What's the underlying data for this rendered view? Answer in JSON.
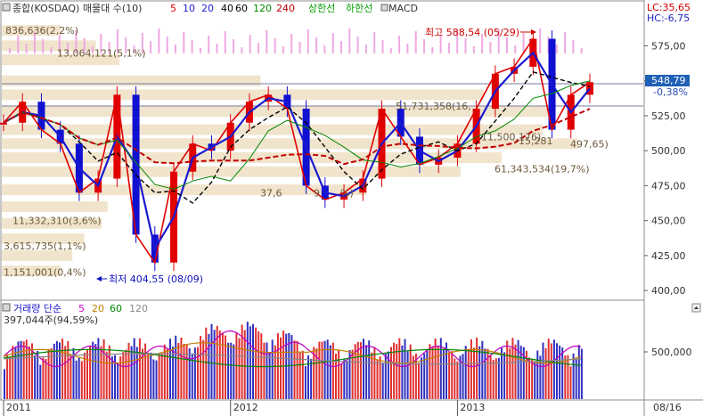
{
  "chart_data": [
    {
      "type": "candlestick",
      "title": "종합(KOSDAQ) 매물대 수(10)",
      "legend": {
        "ma_labels": [
          "5",
          "10",
          "20",
          "40",
          "60",
          "120",
          "240"
        ],
        "ma_colors": [
          "#e00000",
          "#1a1ad0",
          "#1a1ad0",
          "#000000",
          "#000000",
          "#008800",
          "#c00000"
        ],
        "upper_band_label": "상한선",
        "lower_band_label": "하한선",
        "macd_label": "MACD"
      },
      "right_indicators": {
        "lc": "LC:35,65",
        "hc": "HC:-6,75"
      },
      "current_value": "548,79",
      "current_change": "-0,38%",
      "y_ticks": [
        {
          "v": 575,
          "label": "575,00"
        },
        {
          "v": 550,
          "label": "550,00"
        },
        {
          "v": 525,
          "label": "525,00"
        },
        {
          "v": 500,
          "label": "500,00"
        },
        {
          "v": 475,
          "label": "475,00"
        },
        {
          "v": 450,
          "label": "450,00"
        },
        {
          "v": 425,
          "label": "425,00"
        },
        {
          "v": 400,
          "label": "400,00"
        }
      ],
      "ylim": [
        395,
        595
      ],
      "x_ticks": [
        {
          "x": "2011-01",
          "label": "2011"
        },
        {
          "x": "2012-01",
          "label": "2012"
        },
        {
          "x": "2013-01",
          "label": "2013"
        }
      ],
      "last_date_label": "08/16",
      "price_close": [
        {
          "x": "2011-01",
          "y": 520
        },
        {
          "x": "2011-02",
          "y": 535
        },
        {
          "x": "2011-03",
          "y": 515
        },
        {
          "x": "2011-04",
          "y": 505
        },
        {
          "x": "2011-05",
          "y": 470
        },
        {
          "x": "2011-06",
          "y": 480
        },
        {
          "x": "2011-07",
          "y": 540
        },
        {
          "x": "2011-08",
          "y": 440
        },
        {
          "x": "2011-09",
          "y": 420
        },
        {
          "x": "2011-10",
          "y": 485
        },
        {
          "x": "2011-11",
          "y": 505
        },
        {
          "x": "2011-12",
          "y": 500
        },
        {
          "x": "2012-01",
          "y": 520
        },
        {
          "x": "2012-02",
          "y": 535
        },
        {
          "x": "2012-03",
          "y": 540
        },
        {
          "x": "2012-04",
          "y": 530
        },
        {
          "x": "2012-05",
          "y": 475
        },
        {
          "x": "2012-06",
          "y": 465
        },
        {
          "x": "2012-07",
          "y": 470
        },
        {
          "x": "2012-08",
          "y": 480
        },
        {
          "x": "2012-09",
          "y": 530
        },
        {
          "x": "2012-10",
          "y": 510
        },
        {
          "x": "2012-11",
          "y": 490
        },
        {
          "x": "2012-12",
          "y": 495
        },
        {
          "x": "2013-01",
          "y": 505
        },
        {
          "x": "2013-02",
          "y": 530
        },
        {
          "x": "2013-03",
          "y": 555
        },
        {
          "x": "2013-04",
          "y": 560
        },
        {
          "x": "2013-05",
          "y": 580
        },
        {
          "x": "2013-06",
          "y": 515
        },
        {
          "x": "2013-07",
          "y": 540
        },
        {
          "x": "2013-08",
          "y": 549
        }
      ],
      "volume_profile_labels": [
        {
          "text": "836,636(2,2%)",
          "y": 586
        },
        {
          "text": "13,064,121(5,1%)",
          "y": 570
        },
        {
          "text": "51,731,358(16,",
          "y": 532
        },
        {
          "text": "11,500,176)",
          "y": 510
        },
        {
          "text": "15,281",
          "y": 507
        },
        {
          "text": "497,65)",
          "y": 505
        },
        {
          "text": "61,343,534(19,7%)",
          "y": 487
        },
        {
          "text": "37,6",
          "y": 470
        },
        {
          "text": "9",
          "y": 470
        },
        {
          "text": "%)",
          "y": 470
        },
        {
          "text": "11,332,310(3,6%)",
          "y": 450
        },
        {
          "text": "3,615,735(1,1%)",
          "y": 432
        },
        {
          "text": "1,151,001(0,4%)",
          "y": 413
        }
      ],
      "annotations": [
        {
          "text": "최고 588,54 (05/29)",
          "x": "2013-05",
          "y": 588.54
        },
        {
          "text": "최저 404,55 (08/09)",
          "x": "2011-08",
          "y": 404.55
        }
      ]
    },
    {
      "type": "bar",
      "title": "거래량 단순",
      "legend": {
        "ma_labels": [
          "5",
          "20",
          "60",
          "120"
        ],
        "ma_colors": [
          "#d000d0",
          "#c08000",
          "#008800",
          "#888888"
        ]
      },
      "current_volume": "397,044주(94,59%)",
      "y_ticks": [
        {
          "v": 500000,
          "label": "500,000"
        }
      ]
    }
  ]
}
